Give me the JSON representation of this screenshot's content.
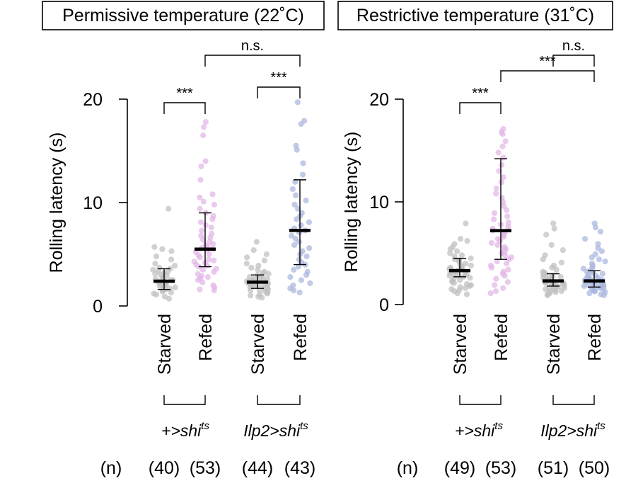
{
  "figure": {
    "n_label": "(n)",
    "colors": {
      "gray": "#bfbfbf",
      "pink": "#e2b6e6",
      "blue": "#a9b6dc",
      "line": "#000000"
    }
  },
  "chart_data": [
    {
      "type": "scatter",
      "title": "Permissive temperature (22˚C)",
      "ylabel": "Rolling latency (s)",
      "ylim": [
        0,
        20
      ],
      "yticks": [
        0,
        10,
        20
      ],
      "categories": [
        "Starved",
        "Refed",
        "Starved",
        "Refed"
      ],
      "groups": [
        {
          "genotype_prefix": "+>",
          "genotype_main": "shi",
          "genotype_sup": "ts"
        },
        {
          "genotype_prefix": "Ilp2>",
          "genotype_main": "shi",
          "genotype_sup": "ts"
        }
      ],
      "series": [
        {
          "name": "+>shits Starved",
          "color": "gray",
          "n": 40,
          "n_label": "(40)",
          "median": 2.4,
          "q1": 1.6,
          "q3": 3.6,
          "values": [
            9.4,
            5.7,
            5.5,
            5.3,
            4.8,
            4.5,
            4.1,
            3.9,
            3.7,
            3.6,
            3.5,
            3.4,
            3.3,
            3.2,
            3.1,
            3.0,
            2.9,
            2.8,
            2.7,
            2.6,
            2.5,
            2.5,
            2.4,
            2.4,
            2.3,
            2.2,
            2.1,
            2.0,
            1.9,
            1.9,
            1.8,
            1.7,
            1.6,
            1.5,
            1.4,
            1.3,
            1.2,
            1.1,
            0.9,
            0.7
          ]
        },
        {
          "name": "+>shits Refed",
          "color": "pink",
          "n": 53,
          "n_label": "(53)",
          "median": 5.5,
          "q1": 3.8,
          "q3": 9.0,
          "values": [
            17.8,
            17.3,
            16.5,
            14.0,
            13.5,
            12.2,
            10.8,
            10.5,
            10.1,
            9.8,
            9.4,
            9.0,
            8.7,
            8.4,
            8.1,
            7.8,
            7.6,
            7.3,
            7.0,
            6.8,
            6.6,
            6.4,
            6.2,
            6.0,
            5.9,
            5.7,
            5.6,
            5.5,
            5.4,
            5.2,
            5.0,
            4.9,
            4.7,
            4.5,
            4.3,
            4.2,
            4.0,
            3.9,
            3.8,
            3.6,
            3.5,
            3.3,
            3.1,
            2.9,
            2.7,
            2.5,
            2.3,
            2.0,
            1.8,
            1.6,
            1.5,
            2.8,
            4.4
          ]
        },
        {
          "name": "Ilp2>shits Starved",
          "color": "gray",
          "n": 44,
          "n_label": "(44)",
          "median": 2.3,
          "q1": 1.7,
          "q3": 3.0,
          "values": [
            6.2,
            5.4,
            5.0,
            4.7,
            4.4,
            4.1,
            3.9,
            3.7,
            3.5,
            3.3,
            3.2,
            3.1,
            3.0,
            2.9,
            2.8,
            2.7,
            2.6,
            2.5,
            2.5,
            2.4,
            2.3,
            2.3,
            2.2,
            2.2,
            2.1,
            2.0,
            2.0,
            1.9,
            1.8,
            1.8,
            1.7,
            1.6,
            1.5,
            1.5,
            1.4,
            1.3,
            1.2,
            1.1,
            1.0,
            0.9,
            0.8,
            2.6,
            2.1,
            1.9
          ]
        },
        {
          "name": "Ilp2>shits Refed",
          "color": "blue",
          "n": 43,
          "n_label": "(43)",
          "median": 7.3,
          "q1": 4.0,
          "q3": 12.2,
          "values": [
            19.7,
            17.9,
            17.6,
            15.5,
            15.1,
            13.8,
            12.7,
            12.0,
            11.3,
            10.7,
            10.2,
            9.8,
            9.4,
            9.0,
            8.7,
            8.4,
            8.1,
            7.8,
            7.5,
            7.3,
            7.1,
            6.8,
            6.5,
            6.2,
            5.9,
            5.6,
            5.3,
            5.0,
            4.8,
            4.5,
            4.2,
            4.0,
            3.8,
            3.5,
            3.3,
            3.0,
            2.8,
            2.5,
            2.2,
            2.0,
            1.7,
            1.5,
            1.3
          ]
        }
      ],
      "comparisons": [
        {
          "from": 0,
          "to": 1,
          "label": "***"
        },
        {
          "from": 2,
          "to": 3,
          "label": "***"
        },
        {
          "from": 1,
          "to": 3,
          "label": "n.s."
        }
      ]
    },
    {
      "type": "scatter",
      "title": "Restrictive temperature (31˚C)",
      "ylabel": "Rolling latency (s)",
      "ylim": [
        0,
        20
      ],
      "yticks": [
        0,
        10,
        20
      ],
      "categories": [
        "Starved",
        "Refed",
        "Starved",
        "Refed"
      ],
      "groups": [
        {
          "genotype_prefix": "+>",
          "genotype_main": "shi",
          "genotype_sup": "ts"
        },
        {
          "genotype_prefix": "Ilp2>",
          "genotype_main": "shi",
          "genotype_sup": "ts"
        }
      ],
      "series": [
        {
          "name": "+>shits Starved",
          "color": "gray",
          "n": 49,
          "n_label": "(49)",
          "median": 3.3,
          "q1": 2.7,
          "q3": 4.5,
          "values": [
            7.9,
            6.4,
            6.2,
            5.9,
            5.6,
            5.4,
            5.2,
            5.0,
            4.8,
            4.7,
            4.5,
            4.4,
            4.3,
            4.2,
            4.0,
            3.9,
            3.8,
            3.7,
            3.6,
            3.5,
            3.4,
            3.4,
            3.3,
            3.3,
            3.2,
            3.1,
            3.0,
            3.0,
            2.9,
            2.8,
            2.8,
            2.7,
            2.6,
            2.5,
            2.4,
            2.3,
            2.2,
            2.1,
            2.0,
            1.9,
            1.8,
            1.7,
            1.6,
            1.5,
            1.4,
            1.3,
            1.1,
            1.0,
            3.6
          ]
        },
        {
          "name": "+>shits Refed",
          "color": "pink",
          "n": 53,
          "n_label": "(53)",
          "median": 7.2,
          "q1": 4.4,
          "q3": 14.2,
          "values": [
            17.1,
            16.8,
            16.6,
            15.9,
            15.4,
            14.8,
            14.3,
            13.6,
            13.0,
            12.4,
            11.9,
            11.3,
            10.8,
            10.4,
            10.0,
            9.6,
            9.2,
            8.9,
            8.6,
            8.3,
            8.0,
            7.8,
            7.6,
            7.4,
            7.2,
            7.0,
            6.8,
            6.6,
            6.4,
            6.2,
            6.0,
            5.8,
            5.6,
            5.4,
            5.2,
            5.0,
            4.8,
            4.6,
            4.4,
            4.2,
            4.0,
            3.8,
            3.6,
            3.4,
            3.2,
            3.0,
            2.8,
            2.5,
            2.2,
            1.9,
            1.6,
            1.3,
            1.1
          ]
        },
        {
          "name": "Ilp2>shits Starved",
          "color": "gray",
          "n": 51,
          "n_label": "(51)",
          "median": 2.3,
          "q1": 1.8,
          "q3": 3.0,
          "values": [
            7.9,
            7.4,
            6.8,
            5.8,
            5.3,
            4.8,
            4.4,
            4.1,
            3.8,
            3.6,
            3.4,
            3.2,
            3.1,
            3.0,
            2.9,
            2.8,
            2.7,
            2.6,
            2.6,
            2.5,
            2.5,
            2.4,
            2.4,
            2.3,
            2.3,
            2.3,
            2.2,
            2.2,
            2.2,
            2.1,
            2.1,
            2.1,
            2.0,
            2.0,
            1.9,
            1.9,
            1.8,
            1.8,
            1.7,
            1.7,
            1.6,
            1.6,
            1.5,
            1.5,
            1.4,
            1.3,
            1.3,
            1.2,
            1.1,
            1.0,
            0.9
          ]
        },
        {
          "name": "Ilp2>shits Refed",
          "color": "blue",
          "n": 50,
          "n_label": "(50)",
          "median": 2.3,
          "q1": 1.7,
          "q3": 3.3,
          "values": [
            7.9,
            7.5,
            7.1,
            6.4,
            5.9,
            5.5,
            5.2,
            4.9,
            4.6,
            4.4,
            4.2,
            4.0,
            3.8,
            3.6,
            3.5,
            3.3,
            3.2,
            3.1,
            3.0,
            2.9,
            2.8,
            2.7,
            2.6,
            2.5,
            2.5,
            2.4,
            2.4,
            2.3,
            2.3,
            2.2,
            2.2,
            2.1,
            2.1,
            2.0,
            2.0,
            1.9,
            1.9,
            1.8,
            1.8,
            1.7,
            1.6,
            1.6,
            1.5,
            1.4,
            1.3,
            1.3,
            1.2,
            1.1,
            1.0,
            0.9
          ]
        }
      ],
      "comparisons": [
        {
          "from": 0,
          "to": 1,
          "label": "***"
        },
        {
          "from": 2,
          "to": 3,
          "label": "n.s."
        },
        {
          "from": 1,
          "to": 3,
          "label": "***"
        }
      ]
    }
  ]
}
